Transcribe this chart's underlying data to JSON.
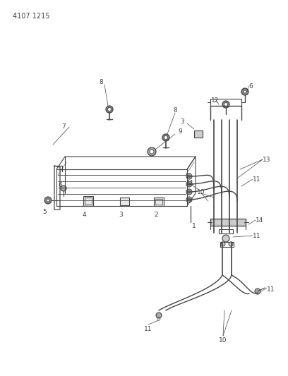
{
  "bg_color": "#ffffff",
  "line_color": "#444444",
  "header_text": "4107 1215",
  "fig_width": 4.08,
  "fig_height": 5.33,
  "dpi": 100
}
